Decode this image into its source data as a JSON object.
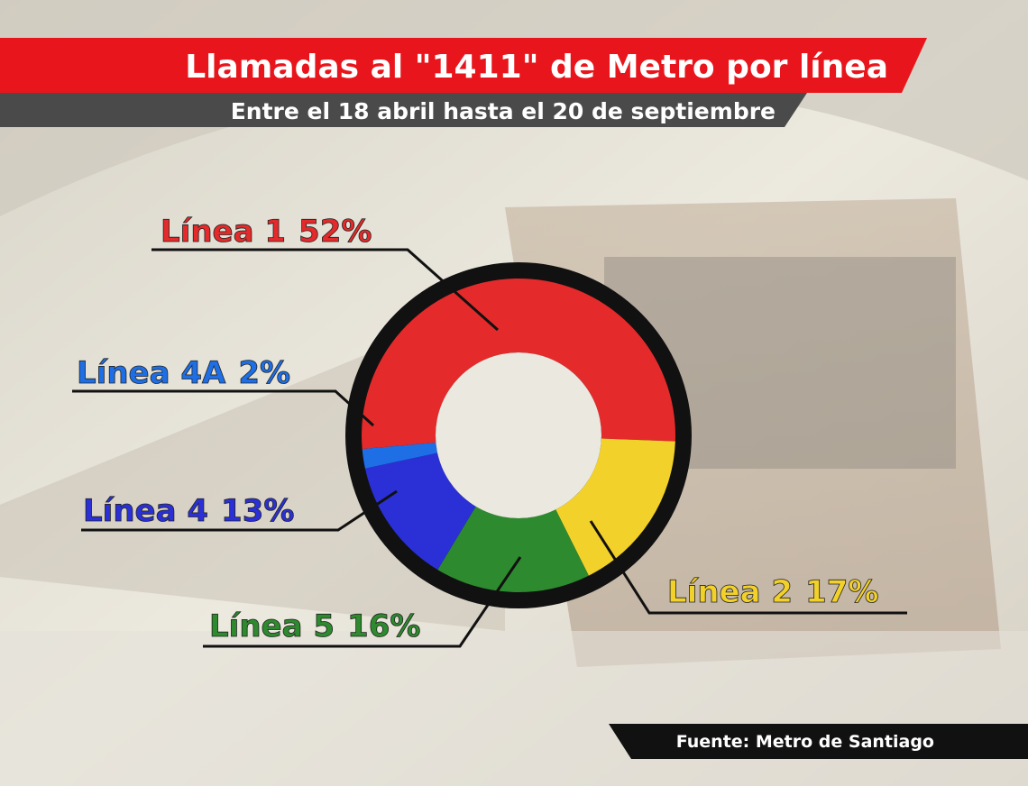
{
  "chart_data": {
    "type": "donut",
    "title": "Llamadas al \"1411\" de Metro por línea",
    "subtitle": "Entre el 18 abril hasta el 20 de septiembre",
    "source": "Fuente: Metro de Santiago",
    "categories": [
      "Línea 1",
      "Línea 2",
      "Línea 5",
      "Línea 4",
      "Línea 4A"
    ],
    "values": [
      52,
      17,
      16,
      13,
      2
    ],
    "value_labels": [
      "52%",
      "17%",
      "16%",
      "13%",
      "2%"
    ],
    "colors": [
      "#e42a2a",
      "#f2d12a",
      "#2e8a2e",
      "#2a30d6",
      "#1e6fe6"
    ]
  }
}
